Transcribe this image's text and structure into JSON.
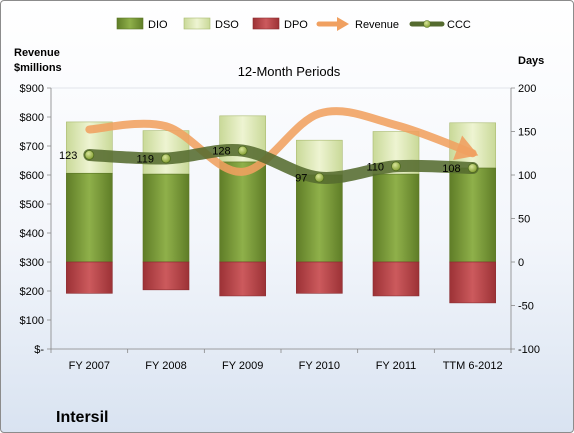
{
  "chart_data": {
    "type": "bar",
    "title": "12-Month Periods",
    "company": "Intersil",
    "categories": [
      "FY 2007",
      "FY 2008",
      "FY 2009",
      "FY 2010",
      "FY 2011",
      "TTM 6-2012"
    ],
    "left_axis": {
      "label_line1": "Revenue",
      "label_line2": "$millions",
      "ylim": [
        0,
        900
      ],
      "ticks": [
        "$-",
        "$100",
        "$200",
        "$300",
        "$400",
        "$500",
        "$600",
        "$700",
        "$800",
        "$900"
      ]
    },
    "right_axis": {
      "label": "Days",
      "ylim": [
        -100,
        200
      ],
      "ticks": [
        "-100",
        "-50",
        "0",
        "50",
        "100",
        "150",
        "200"
      ]
    },
    "legend": [
      "DIO",
      "DSO",
      "DPO",
      "Revenue",
      "CCC"
    ],
    "legend_position": "top",
    "colors": {
      "DIO": "#7a9b3a",
      "DSO": "#d7e4a8",
      "DPO": "#b9474b",
      "Revenue": "#f0a060",
      "CCC": "#556b2f"
    },
    "series": [
      {
        "name": "DIO",
        "axis": "right",
        "values": [
          102,
          101,
          115,
          100,
          101,
          108
        ]
      },
      {
        "name": "DSO",
        "axis": "right",
        "values": [
          59,
          50,
          53,
          40,
          49,
          52
        ]
      },
      {
        "name": "DPO",
        "axis": "right",
        "values": [
          -36,
          -32,
          -39,
          -36,
          -39,
          -47
        ]
      },
      {
        "name": "Revenue",
        "axis": "left",
        "values": [
          757,
          768,
          611,
          812,
          772,
          675
        ]
      },
      {
        "name": "CCC",
        "axis": "right",
        "values": [
          123,
          119,
          128,
          97,
          110,
          108
        ]
      }
    ],
    "data_labels": {
      "series": "CCC",
      "values": [
        "123",
        "119",
        "128",
        "97",
        "110",
        "108"
      ]
    }
  }
}
